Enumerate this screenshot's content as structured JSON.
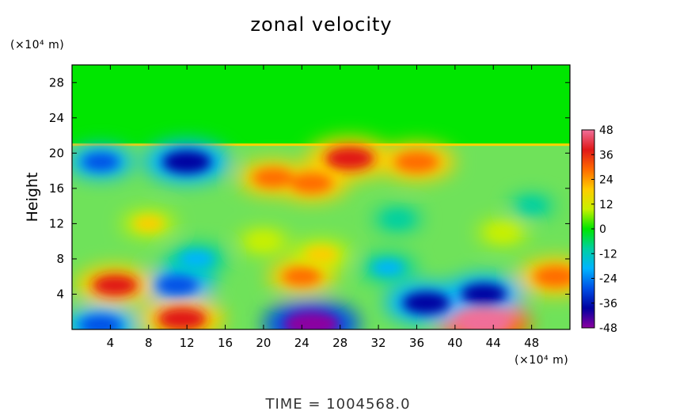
{
  "chart_data": {
    "type": "heatmap",
    "title": "zonal velocity",
    "xlabel": "",
    "x_unit": "(×10⁴ m)",
    "ylabel": "Height",
    "y_unit": "(×10⁴ m)",
    "xlim": [
      0,
      52
    ],
    "ylim": [
      0,
      30
    ],
    "x_ticks": [
      4,
      8,
      12,
      16,
      20,
      24,
      28,
      32,
      36,
      40,
      44,
      48
    ],
    "y_ticks": [
      4,
      8,
      12,
      16,
      20,
      24,
      28
    ],
    "colorbar": {
      "ticks": [
        48,
        36,
        24,
        12,
        0,
        -12,
        -24,
        -36,
        -48
      ],
      "range": [
        -48,
        48
      ],
      "colors": [
        "#f06e9a",
        "#e01818",
        "#ff6a00",
        "#ffcc00",
        "#c8f000",
        "#00e600",
        "#00d0a0",
        "#00b4ff",
        "#0050e6",
        "#0000a0",
        "#8c00a0"
      ]
    },
    "footer": "TIME  =  1004568.0",
    "features": [
      {
        "kind": "band",
        "label": "upper layer",
        "y_range": [
          21,
          30
        ],
        "value": 0
      },
      {
        "kind": "blob",
        "x": 29,
        "y": 19.4,
        "value": 38
      },
      {
        "kind": "blob",
        "x": 36,
        "y": 19.0,
        "value": 32
      },
      {
        "kind": "blob",
        "x": 21,
        "y": 17.2,
        "value": 28
      },
      {
        "kind": "blob",
        "x": 25,
        "y": 16.6,
        "value": 30
      },
      {
        "kind": "blob",
        "x": 12,
        "y": 19.0,
        "value": -38
      },
      {
        "kind": "blob",
        "x": 3,
        "y": 19.0,
        "value": -24
      },
      {
        "kind": "blob",
        "x": 24,
        "y": 6.0,
        "value": 26
      },
      {
        "kind": "blob",
        "x": 26,
        "y": 8.5,
        "value": 20
      },
      {
        "kind": "blob",
        "x": 11,
        "y": 5.0,
        "value": -30
      },
      {
        "kind": "blob",
        "x": 13,
        "y": 8.0,
        "value": -22
      },
      {
        "kind": "blob",
        "x": 4.5,
        "y": 5.0,
        "value": 34
      },
      {
        "kind": "blob",
        "x": 50.5,
        "y": 6.0,
        "value": 32
      },
      {
        "kind": "blob",
        "x": 11.5,
        "y": 1.2,
        "value": 38
      },
      {
        "kind": "blob",
        "x": 25,
        "y": 0.6,
        "value": -46
      },
      {
        "kind": "blob",
        "x": 43,
        "y": 0.8,
        "value": 44
      },
      {
        "kind": "blob",
        "x": 37,
        "y": 3.0,
        "value": -36
      },
      {
        "kind": "blob",
        "x": 43,
        "y": 4.0,
        "value": -34
      },
      {
        "kind": "blob",
        "x": 3,
        "y": 0.5,
        "value": -30
      },
      {
        "kind": "blob",
        "x": 33,
        "y": 7.0,
        "value": -18
      },
      {
        "kind": "blob",
        "x": 34,
        "y": 12.5,
        "value": -12
      },
      {
        "kind": "blob",
        "x": 8,
        "y": 12.0,
        "value": 16
      },
      {
        "kind": "blob",
        "x": 45,
        "y": 11.0,
        "value": 14
      },
      {
        "kind": "blob",
        "x": 48,
        "y": 14.0,
        "value": -10
      },
      {
        "kind": "blob",
        "x": 20,
        "y": 10.0,
        "value": 14
      }
    ]
  }
}
